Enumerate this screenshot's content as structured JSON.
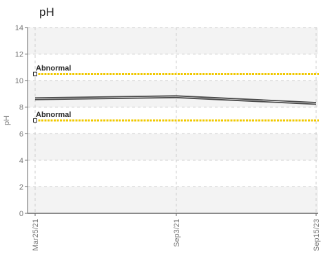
{
  "chart_data": {
    "type": "line",
    "title": "pH",
    "ylabel": "pH",
    "ylim": [
      0,
      14
    ],
    "yticks": [
      0,
      2,
      4,
      6,
      8,
      10,
      12,
      14
    ],
    "x_ticks": [
      "Mar25/21",
      "Sep3/21",
      "Sep15/23"
    ],
    "grid": true,
    "series": [
      {
        "values": [
          {
            "x": "Mar25/21",
            "y": 8.7
          },
          {
            "x": "Sep3/21",
            "y": 8.85
          },
          {
            "x": "Sep15/23",
            "y": 8.35
          }
        ]
      }
    ],
    "reference_lines": [
      {
        "label": "Abnormal",
        "y": 10.5
      },
      {
        "label": "Abnormal",
        "y": 7.0
      }
    ]
  },
  "colors": {
    "line": "#4a4a4a",
    "reference": "#f0c800",
    "band": "#f3f3f3",
    "grid": "#cccccc",
    "axis": "#666666"
  }
}
